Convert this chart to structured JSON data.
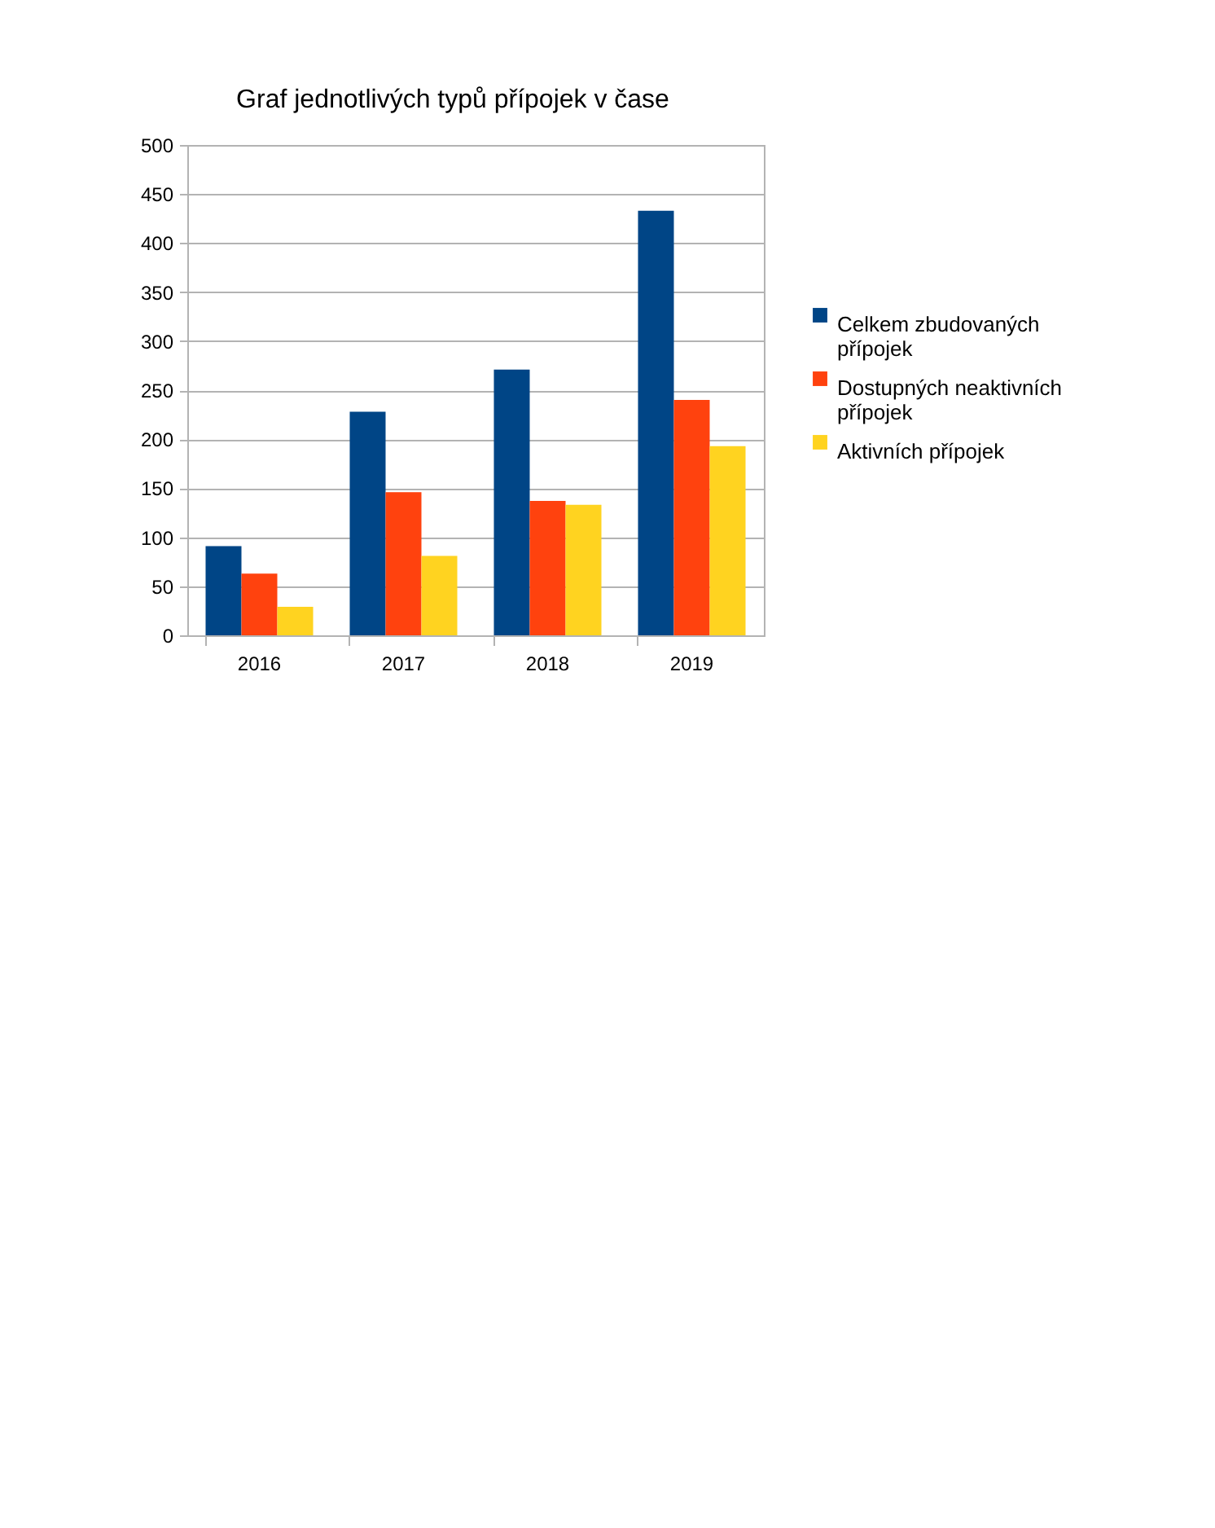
{
  "chart_data": {
    "type": "bar",
    "title": "Graf jednotlivých typů přípojek v čase",
    "categories": [
      "2016",
      "2017",
      "2018",
      "2019"
    ],
    "series": [
      {
        "name": "Celkem zbudovaných přípojek",
        "color": "#004586",
        "values": [
          91,
          228,
          271,
          433
        ]
      },
      {
        "name": "Dostupných neaktivních přípojek",
        "color": "#ff420e",
        "values": [
          63,
          146,
          137,
          240
        ]
      },
      {
        "name": "Aktivních přípojek",
        "color": "#ffd320",
        "values": [
          29,
          81,
          133,
          193
        ]
      }
    ],
    "ylim": [
      0,
      500
    ],
    "yticks": [
      0,
      50,
      100,
      150,
      200,
      250,
      300,
      350,
      400,
      450,
      500
    ],
    "grid": "y",
    "legend": "right"
  }
}
